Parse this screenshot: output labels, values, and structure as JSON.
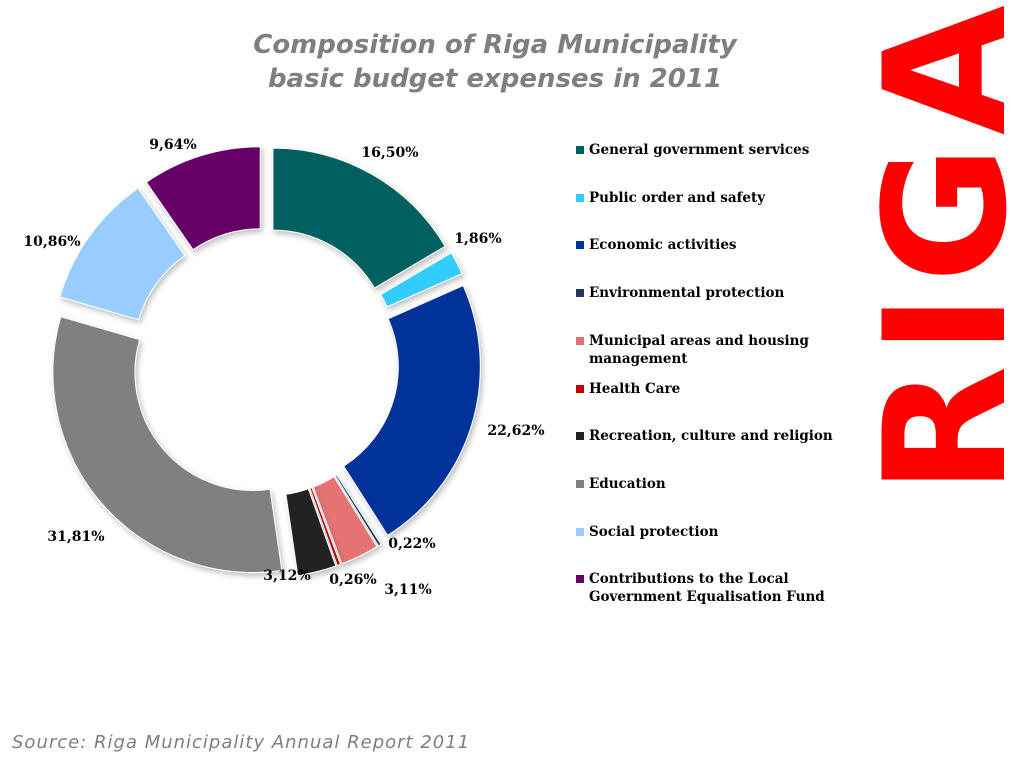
{
  "title_line1": "Composition of Riga Municipality",
  "title_line2": "basic budget expenses in 2011",
  "brand": "RIGA",
  "source": "Source: Riga Municipality Annual Report 2011",
  "colors": {
    "brand": "#ff0000",
    "title": "#7f7f7f"
  },
  "chart_data": {
    "type": "pie",
    "style": "exploded-donut",
    "legend_position": "right",
    "categories": [
      "General government services",
      "Public order and safety",
      "Economic activities",
      "Environmental protection",
      "Municipal areas and housing management",
      "Health Care",
      "Recreation, culture and religion",
      "Education",
      "Social protection",
      "Contributions to the Local Government Equalisation Fund"
    ],
    "values": [
      16.5,
      1.86,
      22.62,
      0.22,
      3.11,
      0.26,
      3.12,
      31.81,
      10.86,
      9.64
    ],
    "labels": [
      "16,50%",
      "1,86%",
      "22,62%",
      "0,22%",
      "3,11%",
      "0,26%",
      "3,12%",
      "31,81%",
      "10,86%",
      "9,64%"
    ],
    "colors": [
      "#006060",
      "#33ccff",
      "#003399",
      "#1f3864",
      "#e57373",
      "#c00000",
      "#222222",
      "#808080",
      "#99ccff",
      "#660066"
    ]
  }
}
